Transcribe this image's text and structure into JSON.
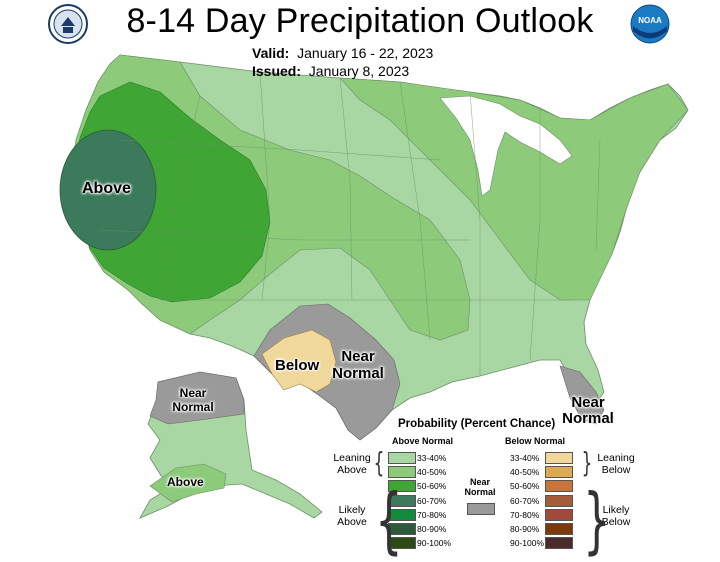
{
  "header": {
    "title": "8-14 Day Precipitation Outlook",
    "valid_label": "Valid:",
    "valid_value": "January 16 - 22, 2023",
    "issued_label": "Issued:",
    "issued_value": "January 8, 2023"
  },
  "logos": {
    "left": "doc-seal-icon",
    "right": "noaa-logo-icon",
    "noaa_text": "NOAA"
  },
  "map_labels": {
    "above_west": "Above",
    "below_texas": "Below",
    "near_normal_texas": "Near Normal",
    "near_normal_florida": "Near Normal",
    "near_normal_alaska": "Near Normal",
    "above_alaska": "Above"
  },
  "legend": {
    "title": "Probability (Percent Chance)",
    "above_head": "Above Normal",
    "below_head": "Below Normal",
    "near_head": "Near Normal",
    "leaning_above": "Leaning Above",
    "likely_above": "Likely Above",
    "leaning_below": "Leaning Below",
    "likely_below": "Likely Below",
    "above": [
      {
        "range": "33-40%",
        "color": "#a8d7a3"
      },
      {
        "range": "40-50%",
        "color": "#8dcb7b"
      },
      {
        "range": "50-60%",
        "color": "#3fa635"
      },
      {
        "range": "60-70%",
        "color": "#3b7a5a"
      },
      {
        "range": "70-80%",
        "color": "#138a3a"
      },
      {
        "range": "80-90%",
        "color": "#2c5a3a"
      },
      {
        "range": "90-100%",
        "color": "#2c4a14"
      }
    ],
    "below": [
      {
        "range": "33-40%",
        "color": "#f0d79a"
      },
      {
        "range": "40-50%",
        "color": "#dcaa52"
      },
      {
        "range": "50-60%",
        "color": "#c7753a"
      },
      {
        "range": "60-70%",
        "color": "#a55a3a"
      },
      {
        "range": "70-80%",
        "color": "#a04a3a"
      },
      {
        "range": "80-90%",
        "color": "#7a3a0a"
      },
      {
        "range": "90-100%",
        "color": "#4a2a2a"
      }
    ],
    "near_color": "#9a9a9a"
  },
  "colors": {
    "lean_above": "#a8d7a3",
    "lean_above_40": "#8dcb7b",
    "likely_above_50": "#3fa635",
    "likely_above_60": "#3b7a5a",
    "near_normal": "#9a9a9a",
    "lean_below": "#f0d79a"
  }
}
